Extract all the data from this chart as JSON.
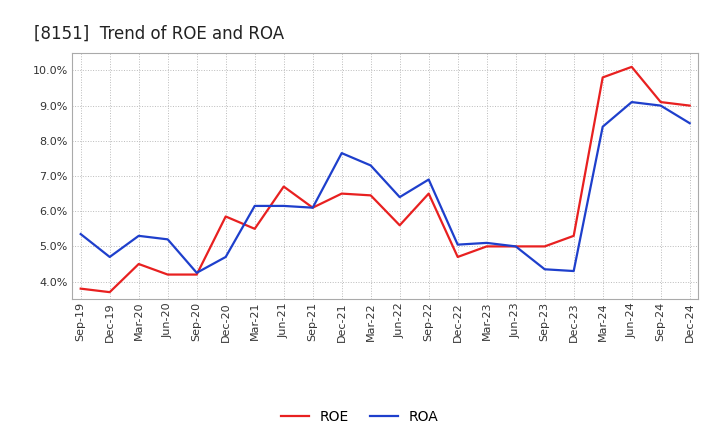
{
  "title": "[8151]  Trend of ROE and ROA",
  "labels": [
    "Sep-19",
    "Dec-19",
    "Mar-20",
    "Jun-20",
    "Sep-20",
    "Dec-20",
    "Mar-21",
    "Jun-21",
    "Sep-21",
    "Dec-21",
    "Mar-22",
    "Jun-22",
    "Sep-22",
    "Dec-22",
    "Mar-23",
    "Jun-23",
    "Sep-23",
    "Dec-23",
    "Mar-24",
    "Jun-24",
    "Sep-24",
    "Dec-24"
  ],
  "ROE": [
    3.8,
    3.7,
    4.5,
    4.2,
    4.2,
    5.85,
    5.5,
    6.7,
    6.1,
    6.5,
    6.45,
    5.6,
    6.5,
    4.7,
    5.0,
    5.0,
    5.0,
    5.3,
    9.8,
    10.1,
    9.1,
    9.0
  ],
  "ROA": [
    5.35,
    4.7,
    5.3,
    5.2,
    4.25,
    4.7,
    6.15,
    6.15,
    6.1,
    7.65,
    7.3,
    6.4,
    6.9,
    5.05,
    5.1,
    5.0,
    4.35,
    4.3,
    8.4,
    9.1,
    9.0,
    8.5
  ],
  "roe_color": "#e82020",
  "roa_color": "#1e3fcc",
  "background_color": "#ffffff",
  "plot_bg_color": "#ffffff",
  "grid_color": "#bbbbbb",
  "ylim": [
    3.5,
    10.5
  ],
  "yticks": [
    4.0,
    5.0,
    6.0,
    7.0,
    8.0,
    9.0,
    10.0
  ],
  "title_fontsize": 12,
  "legend_fontsize": 10,
  "axis_fontsize": 8,
  "line_width": 1.6
}
